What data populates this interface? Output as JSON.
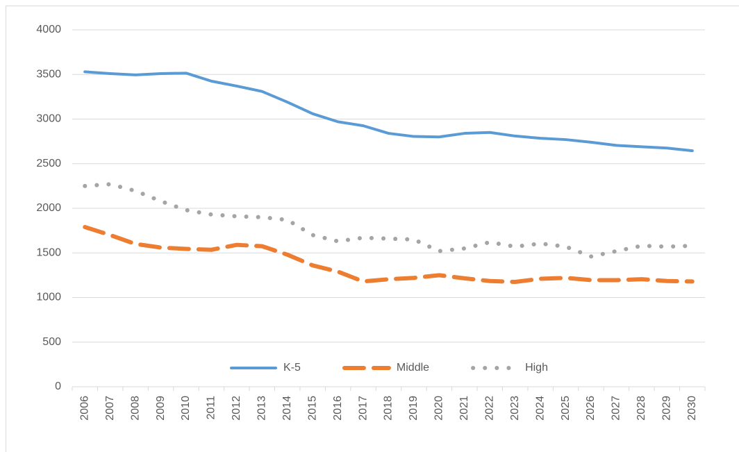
{
  "chart_data": {
    "type": "line",
    "categories": [
      "2006",
      "2007",
      "2008",
      "2009",
      "2010",
      "2011",
      "2012",
      "2013",
      "2014",
      "2015",
      "2016",
      "2017",
      "2018",
      "2019",
      "2020",
      "2021",
      "2022",
      "2023",
      "2024",
      "2025",
      "2026",
      "2027",
      "2028",
      "2029",
      "2030"
    ],
    "series": [
      {
        "name": "K-5",
        "color": "#5b9bd5",
        "line_style": "solid",
        "values": [
          3530,
          3510,
          3495,
          3510,
          3515,
          3425,
          3370,
          3310,
          3190,
          3060,
          2970,
          2925,
          2840,
          2805,
          2800,
          2840,
          2850,
          2810,
          2785,
          2770,
          2740,
          2705,
          2690,
          2675,
          2645
        ]
      },
      {
        "name": "Middle",
        "color": "#ed7d31",
        "line_style": "dash",
        "values": [
          1790,
          1700,
          1600,
          1560,
          1545,
          1535,
          1590,
          1575,
          1480,
          1360,
          1290,
          1180,
          1205,
          1220,
          1250,
          1215,
          1185,
          1175,
          1210,
          1220,
          1195,
          1195,
          1205,
          1185,
          1180
        ]
      },
      {
        "name": "High",
        "color": "#a5a5a5",
        "line_style": "dot",
        "values": [
          2250,
          2270,
          2195,
          2080,
          1980,
          1930,
          1910,
          1900,
          1870,
          1700,
          1630,
          1670,
          1660,
          1650,
          1520,
          1550,
          1620,
          1570,
          1605,
          1570,
          1460,
          1520,
          1580,
          1570,
          1580
        ]
      }
    ],
    "ylim": [
      0,
      4000
    ],
    "yticks": [
      0,
      500,
      1000,
      1500,
      2000,
      2500,
      3000,
      3500,
      4000
    ],
    "grid": true,
    "legend": "bottom"
  }
}
